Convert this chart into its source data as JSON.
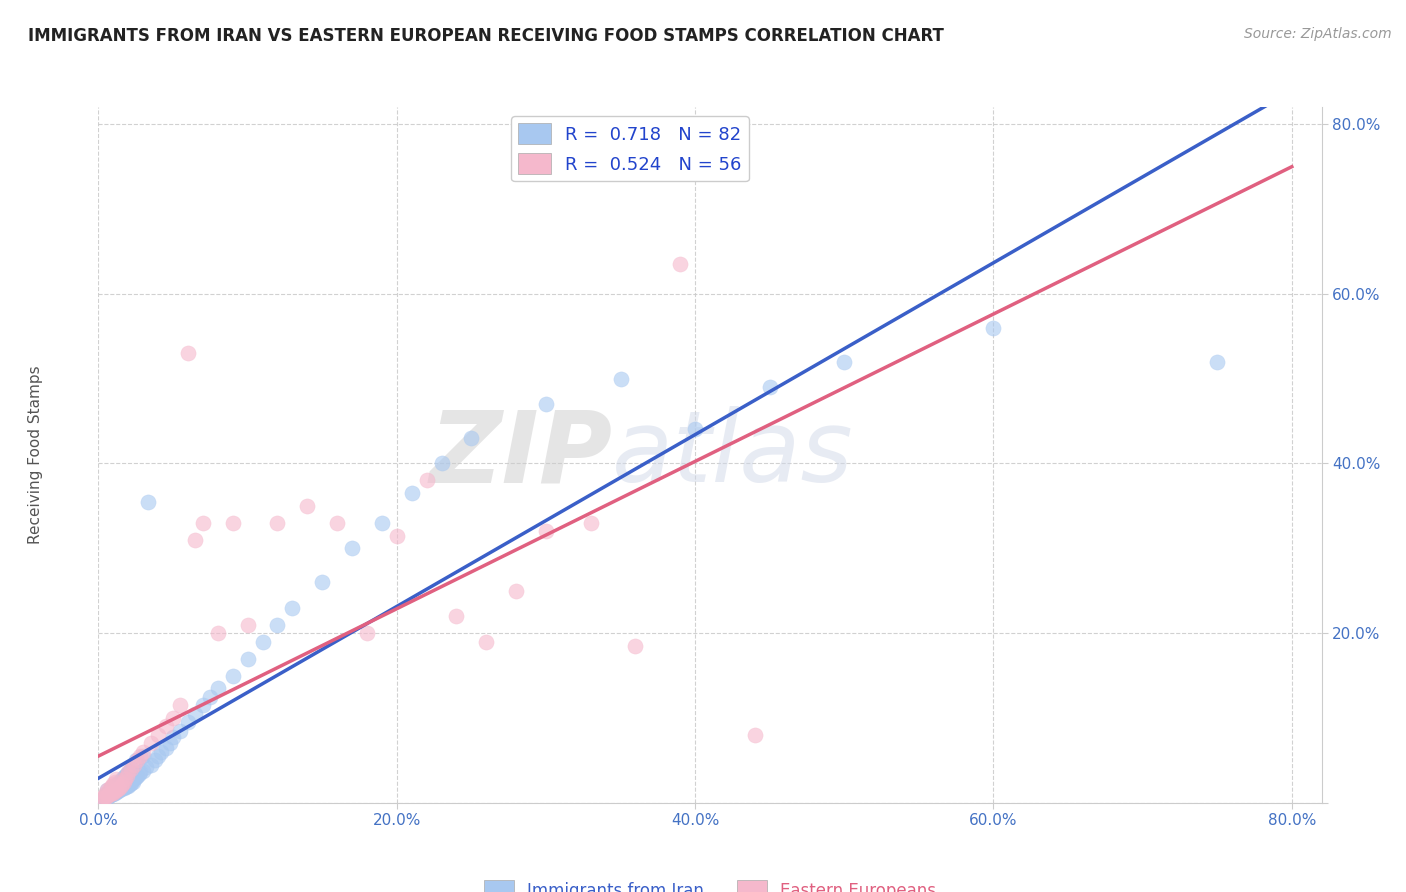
{
  "title": "IMMIGRANTS FROM IRAN VS EASTERN EUROPEAN RECEIVING FOOD STAMPS CORRELATION CHART",
  "source": "Source: ZipAtlas.com",
  "ylabel": "Receiving Food Stamps",
  "R1": 0.718,
  "N1": 82,
  "R2": 0.524,
  "N2": 56,
  "color1": "#a8c8f0",
  "color2": "#f5b8cc",
  "line1_color": "#3a5fc8",
  "line2_color": "#e06080",
  "line2_dash_color": "#d0a0b0",
  "watermark_zip": "ZIP",
  "watermark_atlas": "atlas",
  "xlim": [
    0.0,
    0.82
  ],
  "ylim": [
    0.0,
    0.82
  ],
  "xtick_vals": [
    0.0,
    0.2,
    0.4,
    0.6,
    0.8
  ],
  "xtick_labels": [
    "0.0%",
    "20.0%",
    "40.0%",
    "60.0%",
    "80.0%"
  ],
  "ytick_vals": [
    0.0,
    0.2,
    0.4,
    0.6,
    0.8
  ],
  "ytick_labels": [
    "",
    "20.0%",
    "40.0%",
    "60.0%",
    "80.0%"
  ],
  "legend_label1": "Immigrants from Iran",
  "legend_label2": "Eastern Europeans",
  "iran_x": [
    0.002,
    0.003,
    0.004,
    0.005,
    0.005,
    0.006,
    0.006,
    0.007,
    0.007,
    0.008,
    0.008,
    0.009,
    0.009,
    0.01,
    0.01,
    0.01,
    0.011,
    0.011,
    0.012,
    0.012,
    0.013,
    0.013,
    0.014,
    0.014,
    0.015,
    0.015,
    0.016,
    0.016,
    0.017,
    0.017,
    0.018,
    0.018,
    0.019,
    0.019,
    0.02,
    0.02,
    0.021,
    0.021,
    0.022,
    0.022,
    0.023,
    0.024,
    0.025,
    0.025,
    0.026,
    0.027,
    0.028,
    0.03,
    0.03,
    0.032,
    0.033,
    0.035,
    0.038,
    0.04,
    0.042,
    0.045,
    0.048,
    0.05,
    0.055,
    0.06,
    0.065,
    0.07,
    0.075,
    0.08,
    0.09,
    0.1,
    0.11,
    0.12,
    0.13,
    0.15,
    0.17,
    0.19,
    0.21,
    0.23,
    0.25,
    0.3,
    0.35,
    0.4,
    0.45,
    0.5,
    0.6,
    0.75
  ],
  "iran_y": [
    0.002,
    0.004,
    0.005,
    0.006,
    0.01,
    0.007,
    0.015,
    0.008,
    0.012,
    0.009,
    0.015,
    0.01,
    0.018,
    0.01,
    0.015,
    0.02,
    0.012,
    0.018,
    0.013,
    0.02,
    0.014,
    0.022,
    0.015,
    0.025,
    0.016,
    0.025,
    0.017,
    0.028,
    0.018,
    0.03,
    0.019,
    0.032,
    0.02,
    0.034,
    0.02,
    0.035,
    0.022,
    0.038,
    0.023,
    0.04,
    0.025,
    0.028,
    0.03,
    0.05,
    0.032,
    0.034,
    0.036,
    0.038,
    0.055,
    0.042,
    0.355,
    0.045,
    0.05,
    0.055,
    0.06,
    0.065,
    0.07,
    0.078,
    0.085,
    0.095,
    0.105,
    0.115,
    0.125,
    0.135,
    0.15,
    0.17,
    0.19,
    0.21,
    0.23,
    0.26,
    0.3,
    0.33,
    0.365,
    0.4,
    0.43,
    0.47,
    0.5,
    0.44,
    0.49,
    0.52,
    0.56,
    0.52
  ],
  "ee_x": [
    0.002,
    0.003,
    0.004,
    0.005,
    0.005,
    0.006,
    0.006,
    0.007,
    0.008,
    0.008,
    0.009,
    0.009,
    0.01,
    0.01,
    0.011,
    0.011,
    0.012,
    0.012,
    0.013,
    0.014,
    0.015,
    0.016,
    0.017,
    0.018,
    0.019,
    0.02,
    0.022,
    0.024,
    0.026,
    0.028,
    0.03,
    0.035,
    0.04,
    0.045,
    0.05,
    0.055,
    0.06,
    0.065,
    0.07,
    0.08,
    0.09,
    0.1,
    0.12,
    0.14,
    0.16,
    0.18,
    0.2,
    0.22,
    0.24,
    0.26,
    0.28,
    0.3,
    0.33,
    0.36,
    0.39,
    0.44
  ],
  "ee_y": [
    0.004,
    0.006,
    0.008,
    0.007,
    0.012,
    0.008,
    0.015,
    0.01,
    0.01,
    0.018,
    0.012,
    0.02,
    0.012,
    0.022,
    0.014,
    0.025,
    0.015,
    0.028,
    0.016,
    0.018,
    0.02,
    0.022,
    0.025,
    0.028,
    0.032,
    0.036,
    0.04,
    0.045,
    0.05,
    0.055,
    0.06,
    0.07,
    0.08,
    0.09,
    0.1,
    0.115,
    0.53,
    0.31,
    0.33,
    0.2,
    0.33,
    0.21,
    0.33,
    0.35,
    0.33,
    0.2,
    0.315,
    0.38,
    0.22,
    0.19,
    0.25,
    0.32,
    0.33,
    0.185,
    0.635,
    0.08
  ]
}
